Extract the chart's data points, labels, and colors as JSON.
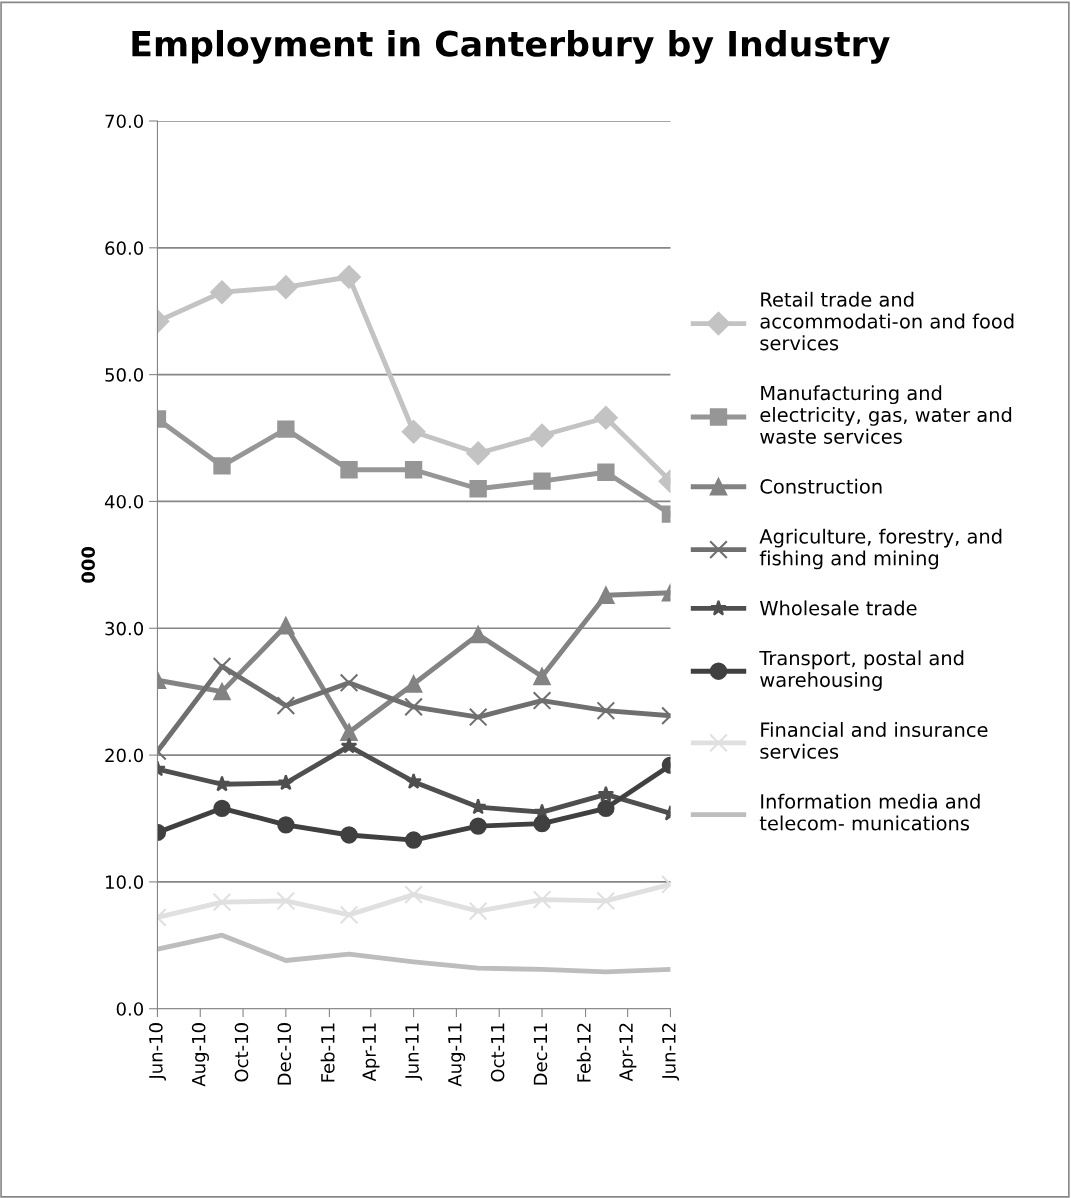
{
  "chart_data": {
    "type": "line",
    "title": "Employment in Canterbury by Industry",
    "ylabel": "000",
    "x": [
      "2010-06",
      "2010-09",
      "2010-12",
      "2011-03",
      "2011-06",
      "2011-09",
      "2011-12",
      "2012-03",
      "2012-06"
    ],
    "xlim": [
      "2010-06",
      "2012-06"
    ],
    "xticks": [
      {
        "value": "2010-06",
        "label": "Jun-10"
      },
      {
        "value": "2010-08",
        "label": "Aug-10"
      },
      {
        "value": "2010-10",
        "label": "Oct-10"
      },
      {
        "value": "2010-12",
        "label": "Dec-10"
      },
      {
        "value": "2011-02",
        "label": "Feb-11"
      },
      {
        "value": "2011-04",
        "label": "Apr-11"
      },
      {
        "value": "2011-06",
        "label": "Jun-11"
      },
      {
        "value": "2011-08",
        "label": "Aug-11"
      },
      {
        "value": "2011-10",
        "label": "Oct-11"
      },
      {
        "value": "2011-12",
        "label": "Dec-11"
      },
      {
        "value": "2012-02",
        "label": "Feb-12"
      },
      {
        "value": "2012-04",
        "label": "Apr-12"
      },
      {
        "value": "2012-06",
        "label": "Jun-12"
      }
    ],
    "ylim": [
      0,
      70
    ],
    "yticks": [
      {
        "value": 0,
        "label": "0.0"
      },
      {
        "value": 10,
        "label": "10.0"
      },
      {
        "value": 20,
        "label": "20.0"
      },
      {
        "value": 30,
        "label": "30.0"
      },
      {
        "value": 40,
        "label": "40.0"
      },
      {
        "value": 50,
        "label": "50.0"
      },
      {
        "value": 60,
        "label": "60.0"
      },
      {
        "value": 70,
        "label": "70.0"
      }
    ],
    "grid": "y",
    "legend": "right",
    "line_style": "solid",
    "series": [
      {
        "name": "Retail trade and accommodati-on and food services",
        "color": "#c3c3c3",
        "marker": "diamond",
        "values": [
          54.2,
          56.5,
          56.9,
          57.7,
          45.5,
          43.8,
          45.2,
          46.6,
          41.6
        ]
      },
      {
        "name": "Manufacturing and electricity, gas, water and waste services",
        "color": "#969696",
        "marker": "square",
        "values": [
          46.5,
          42.8,
          45.7,
          42.5,
          42.5,
          41.0,
          41.6,
          42.3,
          39.0
        ]
      },
      {
        "name": "Construction",
        "color": "#838383",
        "marker": "triangle",
        "values": [
          25.9,
          25.0,
          30.2,
          21.8,
          25.6,
          29.5,
          26.2,
          32.6,
          32.8
        ]
      },
      {
        "name": "Agriculture, forestry, and fishing and mining",
        "color": "#6f6f6f",
        "marker": "cross",
        "values": [
          20.3,
          27.0,
          23.9,
          25.7,
          23.8,
          23.0,
          24.3,
          23.5,
          23.1
        ]
      },
      {
        "name": "Wholesale trade",
        "color": "#4f4f4f",
        "marker": "star",
        "values": [
          18.9,
          17.7,
          17.8,
          20.7,
          17.9,
          15.9,
          15.5,
          16.9,
          15.4
        ]
      },
      {
        "name": "Transport, postal and warehousing",
        "color": "#404040",
        "marker": "circle",
        "values": [
          13.9,
          15.8,
          14.5,
          13.7,
          13.3,
          14.4,
          14.6,
          15.8,
          19.2
        ]
      },
      {
        "name": "Financial and insurance services",
        "color": "#e0e0e0",
        "marker": "cross",
        "values": [
          7.2,
          8.4,
          8.5,
          7.4,
          9.0,
          7.7,
          8.6,
          8.5,
          9.8
        ]
      },
      {
        "name": "Information media and telecom- munications",
        "color": "#bdbdbd",
        "marker": "none",
        "values": [
          4.7,
          5.8,
          3.8,
          4.3,
          3.7,
          3.2,
          3.1,
          2.9,
          3.1
        ]
      }
    ]
  }
}
